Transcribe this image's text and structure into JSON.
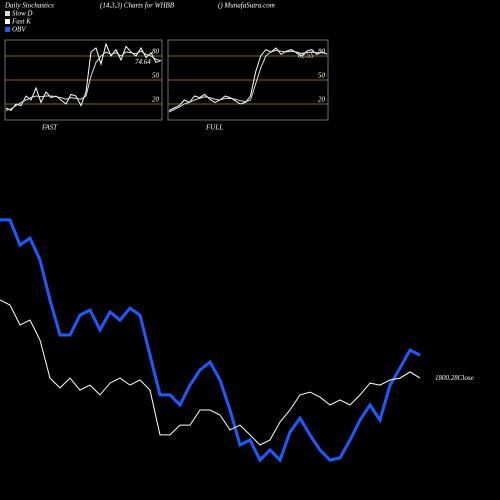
{
  "header": {
    "left": "Daily Stochastics",
    "center": "(14,3,3) Charts for WHBB",
    "right": "() MunafaSutra.com"
  },
  "chart_data": [
    {
      "type": "line",
      "label": "FAST",
      "ylim": [
        0,
        100
      ],
      "yticks": [
        20,
        50,
        80
      ],
      "grid": true,
      "grid_color": "#b8860b",
      "series": [
        {
          "name": "Fast K",
          "color": "#ffffff",
          "values": [
            15,
            12,
            20,
            18,
            30,
            25,
            40,
            22,
            35,
            28,
            30,
            25,
            20,
            32,
            30,
            18,
            35,
            85,
            90,
            70,
            95,
            80,
            88,
            75,
            92,
            85,
            80,
            90,
            78,
            84,
            72,
            74.64
          ]
        },
        {
          "name": "Slow D",
          "color": "#dddddd",
          "values": [
            12,
            14,
            18,
            22,
            25,
            28,
            30,
            29,
            30,
            30,
            29,
            28,
            26,
            28,
            27,
            26,
            30,
            55,
            72,
            80,
            85,
            82,
            84,
            80,
            85,
            84,
            83,
            86,
            82,
            80,
            76,
            74
          ]
        }
      ]
    },
    {
      "type": "line",
      "label": "FULL",
      "ylim": [
        0,
        100
      ],
      "yticks": [
        20,
        50,
        80
      ],
      "grid": true,
      "grid_color": "#b8860b",
      "series": [
        {
          "name": "Fast K",
          "color": "#ffffff",
          "values": [
            12,
            15,
            18,
            25,
            22,
            30,
            28,
            32,
            26,
            22,
            25,
            30,
            28,
            24,
            20,
            22,
            30,
            60,
            80,
            88,
            85,
            90,
            82,
            86,
            88,
            84,
            80,
            86,
            88,
            82,
            85,
            82.55
          ]
        },
        {
          "name": "Slow D",
          "color": "#dddddd",
          "values": [
            10,
            13,
            16,
            20,
            22,
            25,
            27,
            29,
            28,
            26,
            25,
            27,
            27,
            26,
            24,
            23,
            25,
            45,
            65,
            80,
            85,
            87,
            86,
            85,
            86,
            85,
            83,
            84,
            85,
            84,
            84,
            83
          ]
        }
      ]
    },
    {
      "type": "line",
      "ylim": [
        0,
        100
      ],
      "close_value": 1800.28,
      "series": [
        {
          "name": "OBV",
          "color": "#1e5bff",
          "width": 3,
          "values": [
            92.9,
            92.9,
            83.9,
            86.4,
            78.6,
            64.3,
            51.8,
            51.8,
            58.9,
            60.7,
            53.6,
            60,
            57.1,
            61.4,
            58.9,
            44.6,
            30.4,
            30.4,
            26.8,
            33.9,
            39.3,
            42.1,
            35.7,
            25,
            12.5,
            14.3,
            7.1,
            10.7,
            7.1,
            17.1,
            22.1,
            16.1,
            10.7,
            7.1,
            7.9,
            14.3,
            21.4,
            26.8,
            21.4,
            33.9,
            40,
            46.4,
            44.6
          ]
        },
        {
          "name": "Close",
          "color": "#ffffff",
          "width": 1,
          "values": [
            64.3,
            62.5,
            55.4,
            57.1,
            50,
            36.4,
            32.9,
            36.4,
            32.1,
            33.9,
            30.4,
            34.6,
            36.4,
            33.9,
            35.7,
            32.1,
            16.1,
            16.1,
            19.6,
            19.6,
            25,
            25,
            23.2,
            17.9,
            19.6,
            16.1,
            12.5,
            14.3,
            20.7,
            25,
            30.4,
            31.4,
            29.6,
            26.8,
            28.6,
            26.8,
            30.4,
            34.6,
            33.9,
            35.7,
            36.4,
            38.6,
            36.4
          ]
        }
      ]
    }
  ]
}
